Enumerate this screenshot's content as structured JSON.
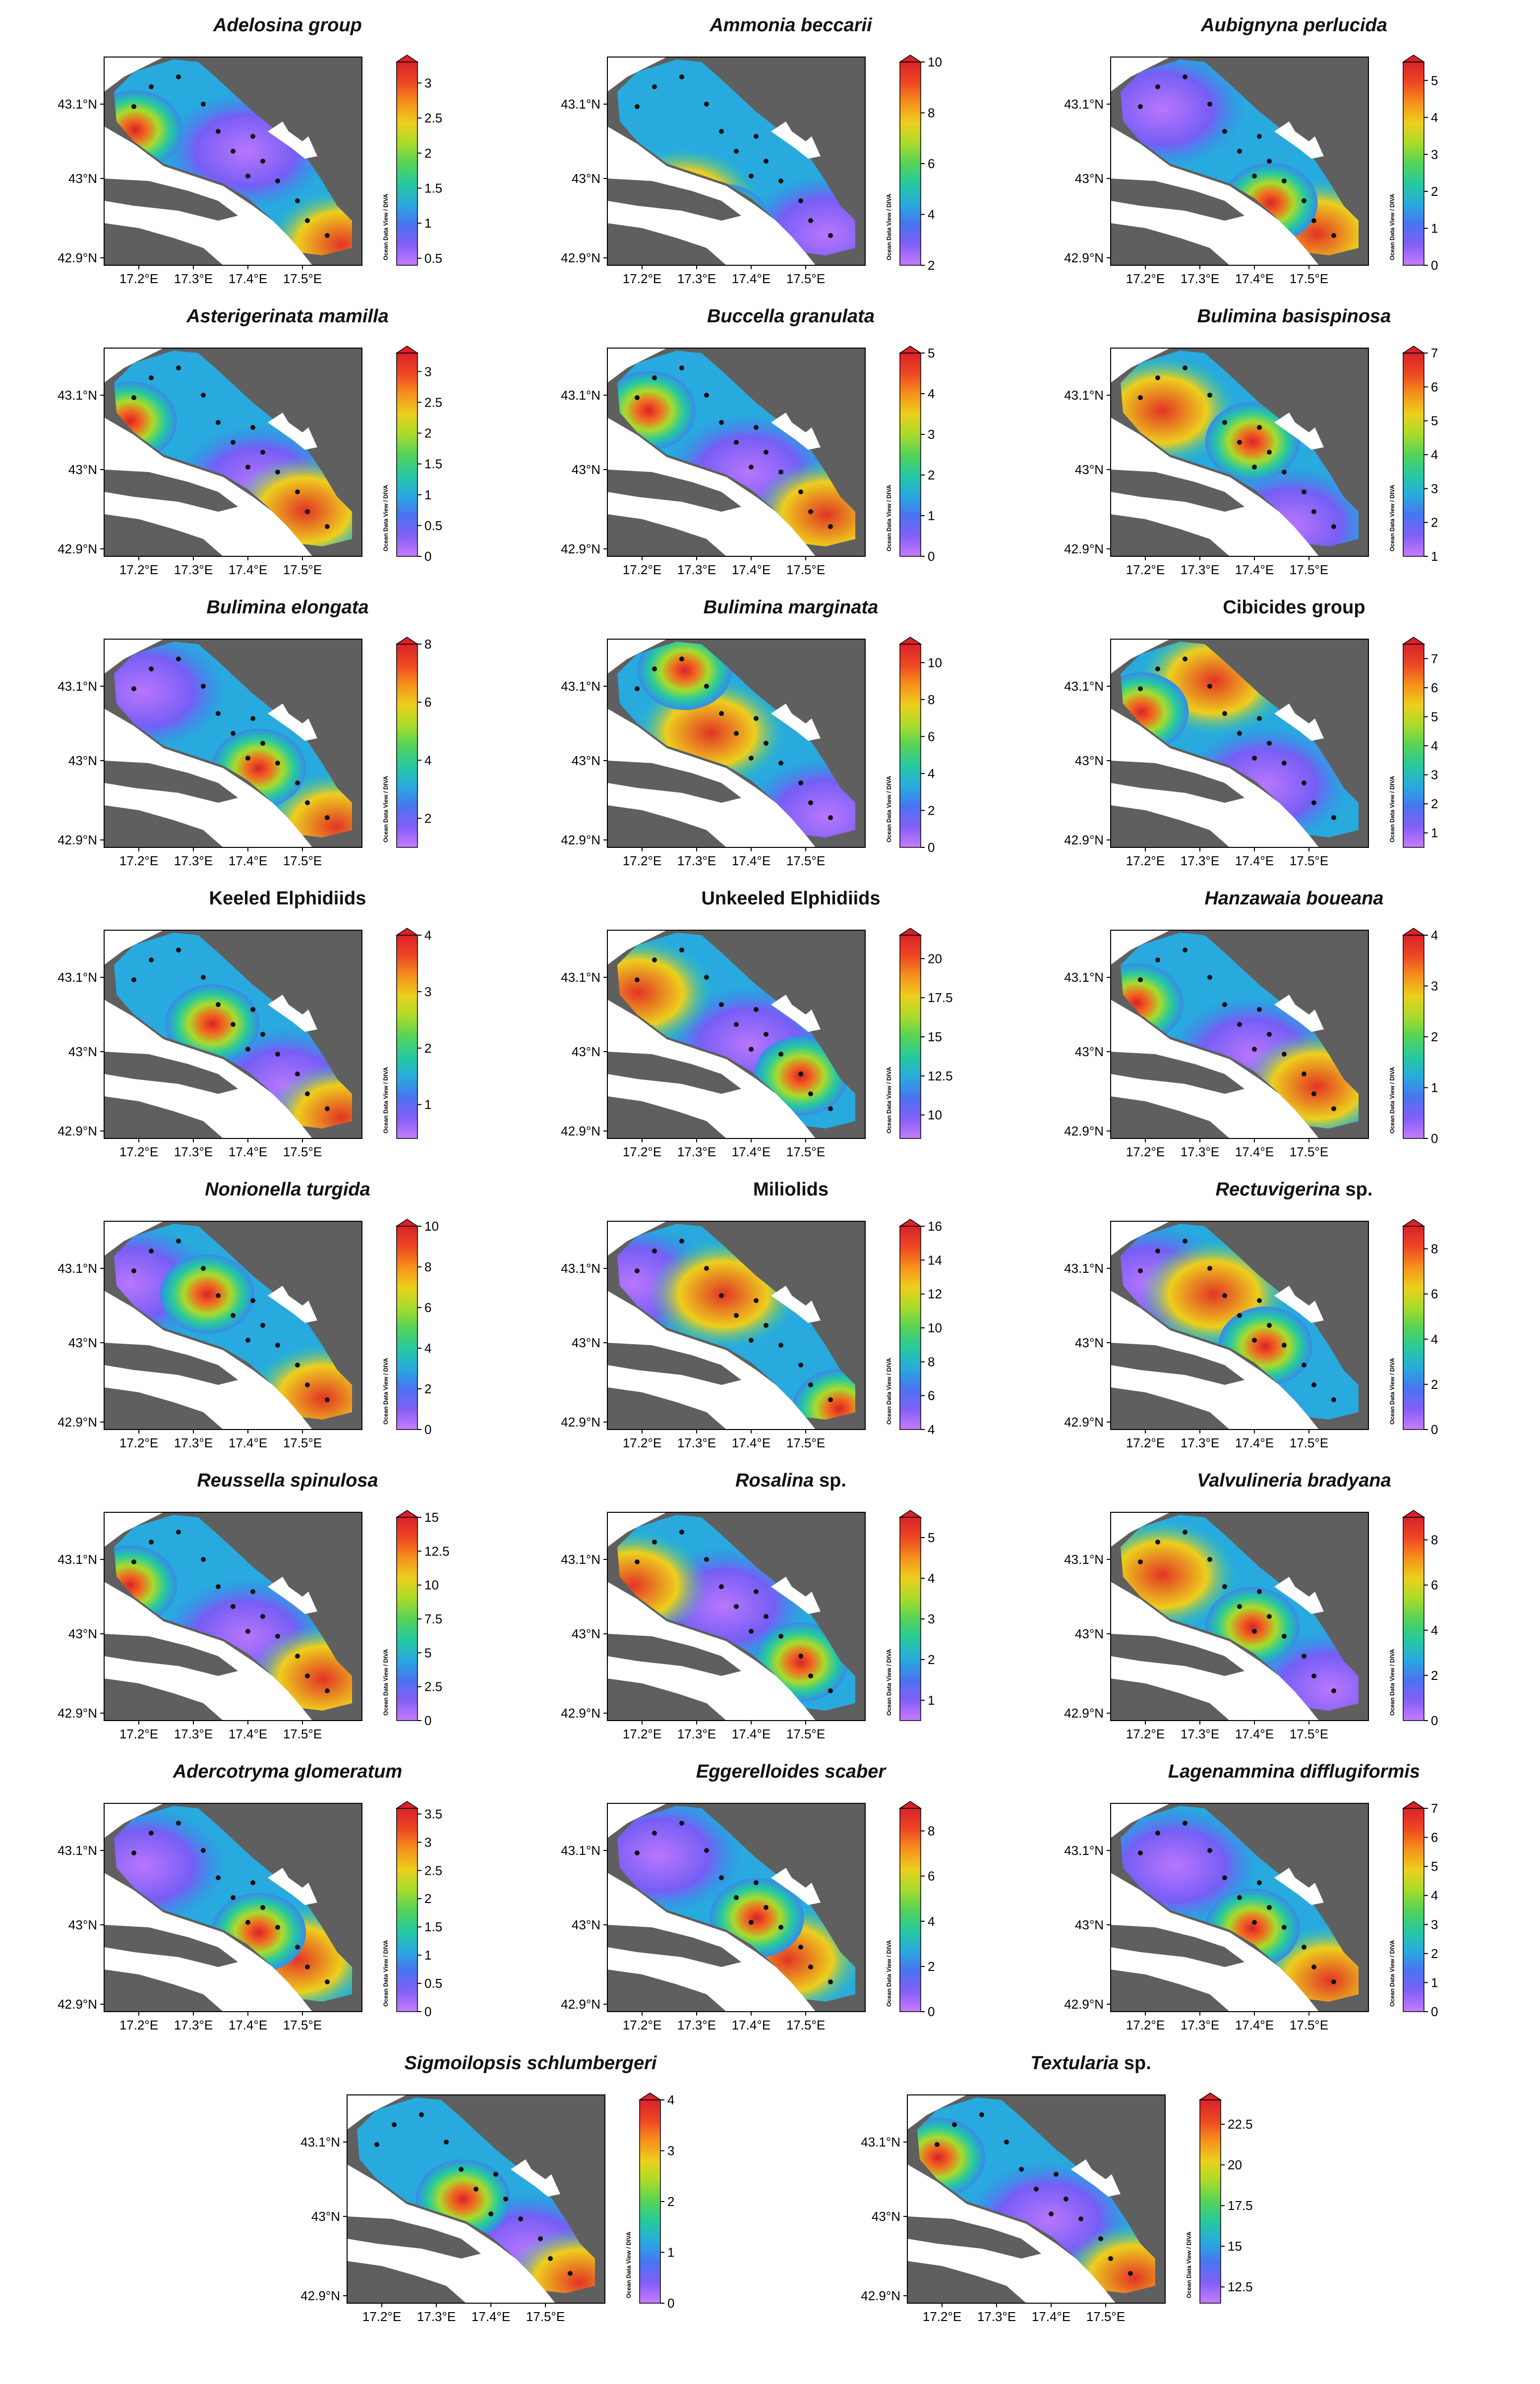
{
  "map_frame": {
    "lat_ticks": [
      "43.1°N",
      "43°N",
      "42.9°N"
    ],
    "lon_ticks": [
      "17.2°E",
      "17.3°E",
      "17.4°E",
      "17.5°E"
    ],
    "credit": "Ocean Data View / DIVA",
    "colors": {
      "land": "#5f5f5f",
      "sea": "#ffffff",
      "station": "#111111",
      "colormap": [
        "#c77cff",
        "#7b5cf5",
        "#3d7af0",
        "#1fbfd6",
        "#2bcf7a",
        "#7fd634",
        "#e8e21e",
        "#f7a21b",
        "#f04a22",
        "#d9222a",
        "#f7c9a0"
      ]
    }
  },
  "panels": [
    {
      "title": "Adelosina group",
      "italic": true,
      "max": 3.3,
      "ticks": [
        "3",
        "2.5",
        "2",
        "1.5",
        "1",
        "0.5"
      ],
      "tick_values": [
        3,
        2.5,
        2,
        1.5,
        1,
        0.5
      ],
      "vmin": 0.4,
      "vmax": 3.3,
      "peak": [
        0.12,
        0.35
      ],
      "low": [
        0.55,
        0.45
      ],
      "high_tail": [
        0.92,
        0.9
      ]
    },
    {
      "title": "Ammonia beccarii",
      "italic": true,
      "ticks": [
        "10",
        "8",
        "6",
        "4",
        "2"
      ],
      "tick_values": [
        10,
        8,
        6,
        4,
        2
      ],
      "vmin": 2,
      "vmax": 10,
      "peak": [
        0.45,
        0.8
      ],
      "low": [
        0.85,
        0.85
      ],
      "high_tail": [
        0.3,
        0.7
      ]
    },
    {
      "title": "Aubignyna perlucida",
      "italic": true,
      "ticks": [
        "5",
        "4",
        "3",
        "2",
        "1",
        "0"
      ],
      "tick_values": [
        5,
        4,
        3,
        2,
        1,
        0
      ],
      "vmin": 0,
      "vmax": 5.5,
      "peak": [
        0.62,
        0.7
      ],
      "low": [
        0.2,
        0.25
      ],
      "high_tail": [
        0.8,
        0.85
      ]
    },
    {
      "title": "Asterigerinata mamilla",
      "italic": true,
      "ticks": [
        "3",
        "2.5",
        "2",
        "1.5",
        "1",
        "0.5",
        "0"
      ],
      "tick_values": [
        3,
        2.5,
        2,
        1.5,
        1,
        0.5,
        0
      ],
      "vmin": 0,
      "vmax": 3.3,
      "peak": [
        0.1,
        0.35
      ],
      "low": [
        0.6,
        0.65
      ],
      "high_tail": [
        0.78,
        0.78
      ]
    },
    {
      "title": "Buccella granulata",
      "italic": true,
      "ticks": [
        "5",
        "4",
        "3",
        "2",
        "1",
        "0"
      ],
      "tick_values": [
        5,
        4,
        3,
        2,
        1,
        0
      ],
      "vmin": 0,
      "vmax": 5,
      "peak": [
        0.16,
        0.3
      ],
      "low": [
        0.55,
        0.6
      ],
      "high_tail": [
        0.85,
        0.8
      ]
    },
    {
      "title": "Bulimina basispinosa",
      "italic": true,
      "ticks": [
        "7",
        "6",
        "5",
        "4",
        "3",
        "2",
        "1"
      ],
      "tick_values": [
        7,
        6,
        5,
        4,
        3,
        2,
        1
      ],
      "vmin": 1,
      "vmax": 7,
      "peak": [
        0.55,
        0.45
      ],
      "low": [
        0.7,
        0.85
      ],
      "high_tail": [
        0.2,
        0.3
      ]
    },
    {
      "title": "Bulimina elongata",
      "italic": true,
      "ticks": [
        "8",
        "6",
        "4",
        "2"
      ],
      "tick_values": [
        8,
        6,
        4,
        2
      ],
      "vmin": 1,
      "vmax": 8,
      "peak": [
        0.6,
        0.62
      ],
      "low": [
        0.15,
        0.25
      ],
      "high_tail": [
        0.9,
        0.9
      ]
    },
    {
      "title": "Bulimina marginata",
      "italic": true,
      "ticks": [
        "10",
        "8",
        "6",
        "4",
        "2",
        "0"
      ],
      "tick_values": [
        10,
        8,
        6,
        4,
        2,
        0
      ],
      "vmin": 0,
      "vmax": 11,
      "peak": [
        0.3,
        0.15
      ],
      "low": [
        0.85,
        0.85
      ],
      "high_tail": [
        0.4,
        0.45
      ]
    },
    {
      "title": "Cibicides group",
      "italic": false,
      "ticks": [
        "7",
        "6",
        "5",
        "4",
        "3",
        "2",
        "1"
      ],
      "tick_values": [
        7,
        6,
        5,
        4,
        3,
        2,
        1
      ],
      "vmin": 0.5,
      "vmax": 7.5,
      "peak": [
        0.12,
        0.35
      ],
      "low": [
        0.6,
        0.7
      ],
      "high_tail": [
        0.4,
        0.2
      ]
    },
    {
      "title": "Keeled Elphidiids",
      "italic": false,
      "ticks": [
        "4",
        "3",
        "2",
        "1"
      ],
      "tick_values": [
        4,
        3,
        2,
        1
      ],
      "vmin": 0.4,
      "vmax": 4,
      "peak": [
        0.42,
        0.45
      ],
      "low": [
        0.7,
        0.75
      ],
      "high_tail": [
        0.92,
        0.9
      ]
    },
    {
      "title": "Unkeeled Elphidiids",
      "italic": false,
      "ticks": [
        "20",
        "17.5",
        "15",
        "12.5",
        "10"
      ],
      "tick_values": [
        20,
        17.5,
        15,
        12.5,
        10
      ],
      "vmin": 8.5,
      "vmax": 21.5,
      "peak": [
        0.75,
        0.7
      ],
      "low": [
        0.55,
        0.55
      ],
      "high_tail": [
        0.12,
        0.3
      ]
    },
    {
      "title": "Hanzawaia boueana",
      "italic": true,
      "ticks": [
        "4",
        "3",
        "2",
        "1",
        "0"
      ],
      "tick_values": [
        4,
        3,
        2,
        1,
        0
      ],
      "vmin": 0,
      "vmax": 4,
      "peak": [
        0.1,
        0.35
      ],
      "low": [
        0.55,
        0.6
      ],
      "high_tail": [
        0.8,
        0.75
      ]
    },
    {
      "title": "Nonionella turgida",
      "italic": true,
      "ticks": [
        "10",
        "8",
        "6",
        "4",
        "2",
        "0"
      ],
      "tick_values": [
        10,
        8,
        6,
        4,
        2,
        0
      ],
      "vmin": 0,
      "vmax": 10,
      "peak": [
        0.4,
        0.35
      ],
      "low": [
        0.1,
        0.3
      ],
      "high_tail": [
        0.85,
        0.85
      ]
    },
    {
      "title": "Miliolids",
      "italic": false,
      "ticks": [
        "16",
        "14",
        "12",
        "10",
        "8",
        "6",
        "4"
      ],
      "tick_values": [
        16,
        14,
        12,
        10,
        8,
        6,
        4
      ],
      "vmin": 4,
      "vmax": 16,
      "peak": [
        0.9,
        0.9
      ],
      "low": [
        0.1,
        0.3
      ],
      "high_tail": [
        0.45,
        0.35
      ]
    },
    {
      "title": "Rectuvigerina sp.",
      "italic": false,
      "mixed": [
        [
          "Rectuvigerina",
          true
        ],
        [
          " sp.",
          false
        ]
      ],
      "ticks": [
        "8",
        "6",
        "4",
        "2",
        "0"
      ],
      "tick_values": [
        8,
        6,
        4,
        2,
        0
      ],
      "vmin": 0,
      "vmax": 9,
      "peak": [
        0.6,
        0.6
      ],
      "low": [
        0.15,
        0.3
      ],
      "high_tail": [
        0.4,
        0.35
      ]
    },
    {
      "title": "Reussella spinulosa",
      "italic": true,
      "ticks": [
        "15",
        "12.5",
        "10",
        "7.5",
        "5",
        "2.5",
        "0"
      ],
      "tick_values": [
        15,
        12.5,
        10,
        7.5,
        5,
        2.5,
        0
      ],
      "vmin": 0,
      "vmax": 15,
      "peak": [
        0.1,
        0.35
      ],
      "low": [
        0.55,
        0.6
      ],
      "high_tail": [
        0.85,
        0.8
      ]
    },
    {
      "title": "Rosalina sp.",
      "italic": false,
      "mixed": [
        [
          "Rosalina",
          true
        ],
        [
          " sp.",
          false
        ]
      ],
      "ticks": [
        "5",
        "4",
        "3",
        "2",
        "1"
      ],
      "tick_values": [
        5,
        4,
        3,
        2,
        1
      ],
      "vmin": 0.5,
      "vmax": 5.5,
      "peak": [
        0.75,
        0.72
      ],
      "low": [
        0.45,
        0.45
      ],
      "high_tail": [
        0.1,
        0.35
      ]
    },
    {
      "title": "Valvulineria bradyana",
      "italic": true,
      "ticks": [
        "8",
        "6",
        "4",
        "2",
        "0"
      ],
      "tick_values": [
        8,
        6,
        4,
        2,
        0
      ],
      "vmin": 0,
      "vmax": 9,
      "peak": [
        0.55,
        0.55
      ],
      "low": [
        0.85,
        0.85
      ],
      "high_tail": [
        0.2,
        0.3
      ]
    },
    {
      "title": "Adercotryma glomeratum",
      "italic": true,
      "ticks": [
        "3.5",
        "3",
        "2.5",
        "2",
        "1.5",
        "1",
        "0.5",
        "0"
      ],
      "tick_values": [
        3.5,
        3,
        2.5,
        2,
        1.5,
        1,
        0.5,
        0
      ],
      "vmin": 0,
      "vmax": 3.6,
      "peak": [
        0.6,
        0.62
      ],
      "low": [
        0.15,
        0.3
      ],
      "high_tail": [
        0.75,
        0.75
      ]
    },
    {
      "title": "Eggerelloides scaber",
      "italic": true,
      "ticks": [
        "8",
        "6",
        "4",
        "2",
        "0"
      ],
      "tick_values": [
        8,
        6,
        4,
        2,
        0
      ],
      "vmin": 0,
      "vmax": 9,
      "peak": [
        0.58,
        0.55
      ],
      "low": [
        0.2,
        0.25
      ],
      "high_tail": [
        0.7,
        0.75
      ]
    },
    {
      "title": "Lagenammina difflugiformis",
      "italic": true,
      "ticks": [
        "7",
        "6",
        "5",
        "4",
        "3",
        "2",
        "1",
        "0"
      ],
      "tick_values": [
        7,
        6,
        5,
        4,
        3,
        2,
        1,
        0
      ],
      "vmin": 0,
      "vmax": 7,
      "peak": [
        0.55,
        0.6
      ],
      "low": [
        0.25,
        0.3
      ],
      "high_tail": [
        0.85,
        0.85
      ]
    },
    {
      "title": "Sigmoilopsis schlumbergeri",
      "italic": true,
      "ticks": [
        "4",
        "3",
        "2",
        "1",
        "0"
      ],
      "tick_values": [
        4,
        3,
        2,
        1,
        0
      ],
      "vmin": 0,
      "vmax": 4,
      "peak": [
        0.45,
        0.5
      ],
      "low": [
        0.7,
        0.75
      ],
      "high_tail": [
        0.9,
        0.9
      ]
    },
    {
      "title": "Textularia sp.",
      "italic": false,
      "mixed": [
        [
          "Textularia",
          true
        ],
        [
          " sp.",
          false
        ]
      ],
      "ticks": [
        "22.5",
        "20",
        "17.5",
        "15",
        "12.5"
      ],
      "tick_values": [
        22.5,
        20,
        17.5,
        15,
        12.5
      ],
      "vmin": 11.5,
      "vmax": 24,
      "peak": [
        0.12,
        0.3
      ],
      "low": [
        0.55,
        0.6
      ],
      "high_tail": [
        0.88,
        0.88
      ]
    }
  ]
}
